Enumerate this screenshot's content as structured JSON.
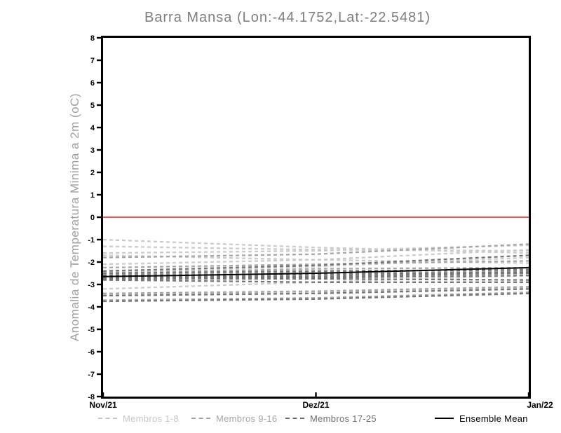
{
  "title": "Barra Mansa (Lon:-44.1752,Lat:-22.5481)",
  "y_axis": {
    "label": "Anomalia de Temperatura Minima a 2m (oC)",
    "ticks": [
      8,
      7,
      6,
      5,
      4,
      3,
      2,
      1,
      0,
      -1,
      -2,
      -3,
      -4,
      -5,
      -6,
      -7,
      -8
    ],
    "range": [
      -8,
      8
    ]
  },
  "x_axis": {
    "labels": [
      "Nov/21",
      "Dez/21",
      "Jan/22"
    ]
  },
  "legend": {
    "items": [
      {
        "label": "Membros 1-8",
        "color": "#c6c6c6",
        "style": "dashed"
      },
      {
        "label": "Membros 9-16",
        "color": "#a6a6a6",
        "style": "dashed"
      },
      {
        "label": "Membros 17-25",
        "color": "#6f6f6f",
        "style": "dashed"
      },
      {
        "label": "Ensemble Mean",
        "color": "#000000",
        "style": "solid"
      }
    ],
    "x_positions": [
      140,
      273,
      407,
      620
    ]
  },
  "chart_data": {
    "type": "line",
    "title": "Barra Mansa (Lon:-44.1752,Lat:-22.5481)",
    "xlabel": "",
    "ylabel": "Anomalia de Temperatura Minima a 2m (oC)",
    "x": [
      "Nov/21",
      "Dez/21",
      "Jan/22"
    ],
    "ylim": [
      -8,
      8
    ],
    "y_ticks": [
      8,
      7,
      6,
      5,
      4,
      3,
      2,
      1,
      0,
      -1,
      -2,
      -3,
      -4,
      -5,
      -6,
      -7,
      -8
    ],
    "grid": false,
    "legend_position": "bottom",
    "zero_line": {
      "value": 0,
      "color": "#f45252"
    },
    "groups": [
      {
        "name": "Membros 1-8",
        "color": "#cbcbcb"
      },
      {
        "name": "Membros 9-16",
        "color": "#a6a6a6"
      },
      {
        "name": "Membros 17-25",
        "color": "#757575"
      }
    ],
    "series": [
      {
        "name": "Membro 1",
        "group": 0,
        "values": [
          -1.0,
          -1.35,
          -1.6
        ]
      },
      {
        "name": "Membro 2",
        "group": 0,
        "values": [
          -1.3,
          -1.45,
          -1.5
        ]
      },
      {
        "name": "Membro 3",
        "group": 0,
        "values": [
          -1.6,
          -1.5,
          -1.25
        ]
      },
      {
        "name": "Membro 4",
        "group": 0,
        "values": [
          -1.7,
          -1.9,
          -2.05
        ]
      },
      {
        "name": "Membro 5",
        "group": 0,
        "values": [
          -2.1,
          -1.9,
          -1.45
        ]
      },
      {
        "name": "Membro 6",
        "group": 0,
        "values": [
          -2.45,
          -2.2,
          -1.8
        ]
      },
      {
        "name": "Membro 7",
        "group": 0,
        "values": [
          -3.2,
          -2.9,
          -2.6
        ]
      },
      {
        "name": "Membro 8",
        "group": 0,
        "values": [
          -3.45,
          -3.35,
          -3.15
        ]
      },
      {
        "name": "Membro 9",
        "group": 1,
        "values": [
          -1.8,
          -1.65,
          -1.2
        ]
      },
      {
        "name": "Membro 10",
        "group": 1,
        "values": [
          -2.25,
          -2.1,
          -1.95
        ]
      },
      {
        "name": "Membro 11",
        "group": 1,
        "values": [
          -2.5,
          -2.3,
          -2.25
        ]
      },
      {
        "name": "Membro 12",
        "group": 1,
        "values": [
          -2.55,
          -2.45,
          -2.3
        ]
      },
      {
        "name": "Membro 13",
        "group": 1,
        "values": [
          -2.6,
          -2.5,
          -2.4
        ]
      },
      {
        "name": "Membro 14",
        "group": 1,
        "values": [
          -2.7,
          -2.6,
          -2.5
        ]
      },
      {
        "name": "Membro 15",
        "group": 1,
        "values": [
          -3.4,
          -3.3,
          -3.1
        ]
      },
      {
        "name": "Membro 16",
        "group": 1,
        "values": [
          -3.7,
          -3.6,
          -3.35
        ]
      },
      {
        "name": "Membro 17",
        "group": 2,
        "values": [
          -2.4,
          -2.15,
          -1.7
        ]
      },
      {
        "name": "Membro 18",
        "group": 2,
        "values": [
          -2.5,
          -2.4,
          -2.35
        ]
      },
      {
        "name": "Membro 19",
        "group": 2,
        "values": [
          -2.6,
          -2.55,
          -2.45
        ]
      },
      {
        "name": "Membro 20",
        "group": 2,
        "values": [
          -2.65,
          -2.65,
          -2.5
        ]
      },
      {
        "name": "Membro 21",
        "group": 2,
        "values": [
          -2.7,
          -2.7,
          -2.6
        ]
      },
      {
        "name": "Membro 22",
        "group": 2,
        "values": [
          -2.75,
          -2.75,
          -2.8
        ]
      },
      {
        "name": "Membro 23",
        "group": 2,
        "values": [
          -2.8,
          -2.9,
          -2.9
        ]
      },
      {
        "name": "Membro 24",
        "group": 2,
        "values": [
          -3.5,
          -3.4,
          -3.2
        ]
      },
      {
        "name": "Membro 25",
        "group": 2,
        "values": [
          -3.75,
          -3.65,
          -3.4
        ]
      }
    ],
    "ensemble_mean": {
      "name": "Ensemble Mean",
      "color": "#000000",
      "values": [
        -2.65,
        -2.5,
        -2.25
      ]
    }
  }
}
